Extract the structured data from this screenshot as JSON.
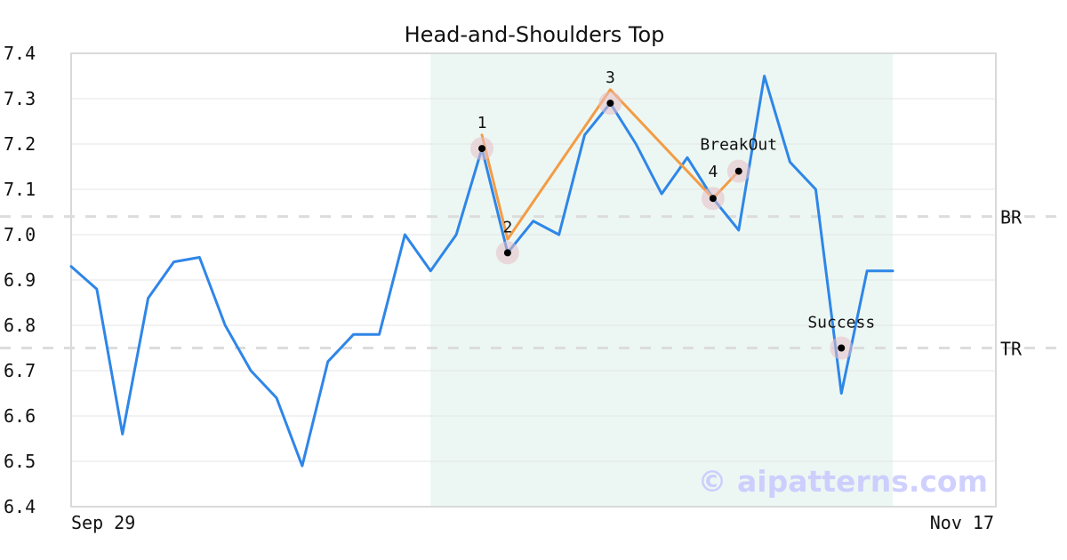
{
  "chart_data": {
    "type": "line",
    "title": "Head-and-Shoulders Top",
    "x_ticks": [
      "Sep 29",
      "Nov 17"
    ],
    "ylim": [
      6.4,
      7.4
    ],
    "y_ticks": [
      7.4,
      7.3,
      7.2,
      7.1,
      7.0,
      6.9,
      6.8,
      6.7,
      6.6,
      6.5,
      6.4
    ],
    "grid": true,
    "series": [
      {
        "values": [
          6.93,
          6.88,
          6.56,
          6.86,
          6.94,
          6.95,
          6.8,
          6.7,
          6.64,
          6.49,
          6.72,
          6.78,
          6.78,
          7.0,
          6.92,
          7.0,
          7.19,
          6.96,
          7.03,
          7.0,
          7.22,
          7.29,
          7.2,
          7.09,
          7.17,
          7.08,
          7.01,
          7.35,
          7.16,
          7.1,
          6.65,
          6.92,
          6.92
        ],
        "color": "#2e86e8"
      },
      {
        "x_index": [
          16,
          17,
          21,
          25,
          26
        ],
        "values": [
          7.22,
          6.99,
          7.32,
          7.08,
          7.14
        ],
        "color": "#f39c45"
      }
    ],
    "shaded_range": {
      "from_index": 14,
      "to_index": 32,
      "color": "#ecf7f3"
    },
    "reference_lines": [
      {
        "label": "BR",
        "value": 7.04
      },
      {
        "label": "TR",
        "value": 6.75
      }
    ],
    "annotations": [
      {
        "label": "1",
        "index": 16,
        "value": 7.19
      },
      {
        "label": "2",
        "index": 17,
        "value": 6.96
      },
      {
        "label": "3",
        "index": 21,
        "value": 7.29
      },
      {
        "label": "4",
        "index": 25,
        "value": 7.08
      },
      {
        "label": "BreakOut",
        "index": 26,
        "value": 7.14
      },
      {
        "label": "Success",
        "index": 30,
        "value": 6.75
      }
    ],
    "watermark": "© aipatterns.com"
  }
}
